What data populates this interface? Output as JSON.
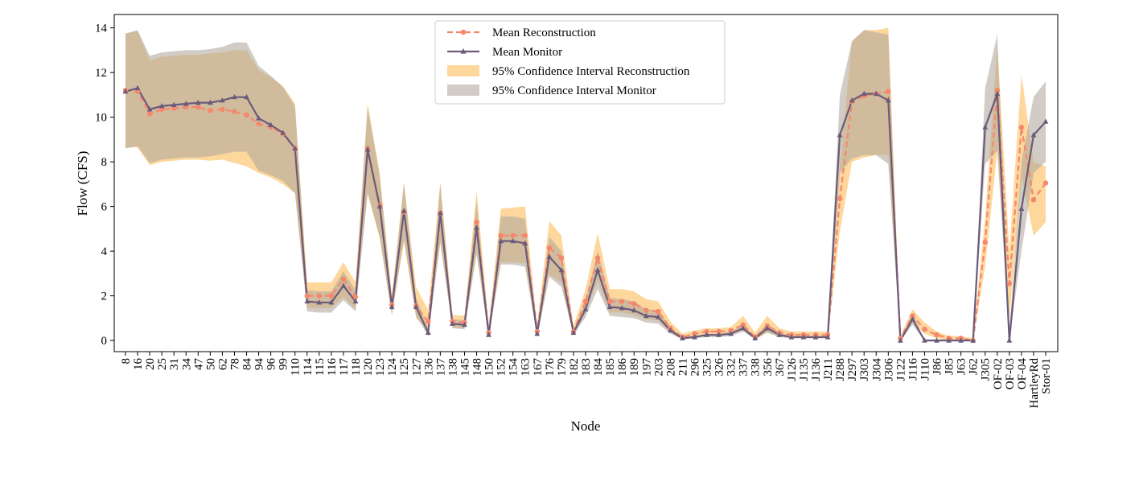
{
  "chart_data": {
    "type": "line",
    "xlabel": "Node",
    "ylabel": "Flow (CFS)",
    "ylim": [
      -0.5,
      14.6
    ],
    "yticks": [
      0,
      2,
      4,
      6,
      8,
      10,
      12,
      14
    ],
    "grid": false,
    "legend_position": "top-center",
    "categories": [
      "8",
      "16",
      "20",
      "25",
      "31",
      "34",
      "47",
      "50",
      "62",
      "78",
      "84",
      "94",
      "96",
      "99",
      "110",
      "114",
      "115",
      "116",
      "117",
      "118",
      "120",
      "123",
      "124",
      "125",
      "127",
      "136",
      "137",
      "138",
      "145",
      "148",
      "150",
      "152",
      "154",
      "163",
      "167",
      "176",
      "179",
      "182",
      "183",
      "184",
      "185",
      "186",
      "189",
      "197",
      "203",
      "208",
      "211",
      "296",
      "325",
      "326",
      "332",
      "337",
      "338",
      "356",
      "367",
      "J126",
      "J135",
      "J136",
      "J211",
      "J288",
      "J297",
      "J303",
      "J304",
      "J306",
      "J122",
      "J116",
      "J110",
      "J86",
      "J85",
      "J63",
      "J62",
      "J305",
      "OF-02",
      "OF-03",
      "OF-04",
      "HartleyRd",
      "Stor-01"
    ],
    "series": [
      {
        "name": "Mean Reconstruction",
        "color": "#f4876d",
        "style": "dashed-circle",
        "values": [
          11.2,
          11.15,
          10.15,
          10.35,
          10.4,
          10.45,
          10.45,
          10.3,
          10.35,
          10.25,
          10.1,
          9.7,
          9.55,
          9.25,
          8.6,
          2.0,
          2.0,
          2.0,
          2.75,
          1.95,
          8.6,
          6.05,
          1.6,
          5.75,
          1.55,
          0.85,
          5.7,
          0.85,
          0.8,
          5.3,
          0.35,
          4.7,
          4.7,
          4.7,
          0.4,
          4.15,
          3.7,
          0.4,
          1.75,
          3.7,
          1.75,
          1.75,
          1.65,
          1.35,
          1.3,
          0.55,
          0.15,
          0.3,
          0.4,
          0.4,
          0.45,
          0.7,
          0.15,
          0.65,
          0.35,
          0.25,
          0.25,
          0.25,
          0.25,
          6.35,
          10.7,
          10.95,
          11.05,
          11.15,
          0.1,
          1.1,
          0.5,
          0.25,
          0.1,
          0.1,
          0.0,
          4.4,
          11.2,
          2.55,
          9.55,
          6.3,
          7.05
        ]
      },
      {
        "name": "Mean Monitor",
        "color": "#6b5b7b",
        "style": "solid-triangle",
        "values": [
          11.15,
          11.3,
          10.35,
          10.5,
          10.55,
          10.6,
          10.65,
          10.65,
          10.75,
          10.9,
          10.9,
          9.95,
          9.65,
          9.3,
          8.6,
          1.75,
          1.7,
          1.7,
          2.45,
          1.75,
          8.55,
          6.0,
          1.5,
          5.8,
          1.5,
          0.35,
          5.7,
          0.75,
          0.7,
          5.05,
          0.25,
          4.45,
          4.45,
          4.35,
          0.3,
          3.75,
          3.15,
          0.35,
          1.4,
          3.15,
          1.5,
          1.45,
          1.35,
          1.1,
          1.05,
          0.45,
          0.1,
          0.15,
          0.25,
          0.25,
          0.3,
          0.55,
          0.1,
          0.55,
          0.25,
          0.15,
          0.15,
          0.15,
          0.15,
          9.2,
          10.75,
          11.05,
          11.05,
          10.75,
          0.0,
          0.95,
          0.0,
          0.0,
          0.0,
          0.0,
          0.0,
          9.55,
          11.05,
          0.0,
          5.9,
          9.2,
          9.8
        ]
      }
    ],
    "bands": [
      {
        "name": "95% Confidence Interval Reconstruction",
        "color": "#fdd089",
        "upper": [
          13.75,
          13.85,
          12.55,
          12.7,
          12.75,
          12.8,
          12.8,
          12.85,
          12.9,
          13.0,
          13.0,
          12.1,
          11.8,
          11.4,
          10.6,
          2.6,
          2.6,
          2.6,
          3.5,
          2.6,
          10.6,
          7.5,
          2.0,
          7.1,
          2.4,
          1.35,
          7.1,
          1.15,
          1.1,
          6.7,
          0.7,
          5.9,
          5.95,
          6.0,
          0.7,
          5.35,
          4.7,
          0.65,
          2.3,
          4.8,
          2.3,
          2.3,
          2.2,
          1.85,
          1.75,
          0.85,
          0.3,
          0.45,
          0.55,
          0.55,
          0.6,
          1.1,
          0.35,
          1.1,
          0.55,
          0.4,
          0.4,
          0.4,
          0.4,
          7.8,
          13.4,
          13.9,
          13.9,
          14.0,
          0.2,
          1.4,
          0.8,
          0.4,
          0.2,
          0.2,
          0.1,
          5.5,
          13.3,
          4.0,
          11.9,
          8.0,
          7.8
        ],
        "lower": [
          8.65,
          8.65,
          7.85,
          8.0,
          8.05,
          8.1,
          8.1,
          8.05,
          8.1,
          7.95,
          7.8,
          7.5,
          7.3,
          7.0,
          6.6,
          1.45,
          1.45,
          1.45,
          1.95,
          1.4,
          6.6,
          4.6,
          1.2,
          4.4,
          1.0,
          0.45,
          4.35,
          0.6,
          0.55,
          4.0,
          0.15,
          3.5,
          3.5,
          3.45,
          0.15,
          2.95,
          2.6,
          0.2,
          1.25,
          2.7,
          1.25,
          1.25,
          1.15,
          0.95,
          0.9,
          0.35,
          0.05,
          0.15,
          0.25,
          0.25,
          0.3,
          0.45,
          0.05,
          0.35,
          0.2,
          0.1,
          0.1,
          0.1,
          0.1,
          4.9,
          8.0,
          8.2,
          8.3,
          8.3,
          0.0,
          0.8,
          0.3,
          0.1,
          0.0,
          0.0,
          0.0,
          3.3,
          8.5,
          1.0,
          7.3,
          4.7,
          5.3
        ]
      },
      {
        "name": "95% Confidence Interval Monitor",
        "color": "#b2aa9e",
        "upper": [
          13.75,
          13.9,
          12.75,
          12.9,
          12.95,
          13.0,
          13.0,
          13.05,
          13.15,
          13.35,
          13.35,
          12.3,
          11.85,
          11.35,
          10.5,
          2.25,
          2.2,
          2.2,
          3.1,
          2.25,
          10.45,
          7.35,
          1.9,
          7.05,
          1.9,
          0.55,
          7.0,
          0.95,
          0.9,
          6.25,
          0.35,
          5.55,
          5.55,
          5.45,
          0.4,
          4.65,
          4.0,
          0.45,
          1.75,
          4.0,
          1.9,
          1.85,
          1.75,
          1.4,
          1.35,
          0.6,
          0.15,
          0.2,
          0.3,
          0.3,
          0.4,
          0.7,
          0.15,
          0.75,
          0.35,
          0.2,
          0.2,
          0.2,
          0.2,
          11.0,
          13.4,
          13.9,
          13.8,
          13.7,
          0.0,
          1.2,
          0.0,
          0.0,
          0.0,
          0.0,
          0.0,
          11.3,
          13.7,
          0.3,
          8.0,
          10.9,
          11.6
        ],
        "lower": [
          8.6,
          8.7,
          7.95,
          8.1,
          8.15,
          8.2,
          8.2,
          8.25,
          8.35,
          8.45,
          8.45,
          7.6,
          7.4,
          7.15,
          6.6,
          1.3,
          1.25,
          1.25,
          1.8,
          1.3,
          6.6,
          4.6,
          1.1,
          4.55,
          1.1,
          0.2,
          4.4,
          0.55,
          0.5,
          3.85,
          0.15,
          3.4,
          3.4,
          3.3,
          0.15,
          2.85,
          2.4,
          0.25,
          1.05,
          2.3,
          1.1,
          1.05,
          1.0,
          0.8,
          0.75,
          0.3,
          0.05,
          0.1,
          0.15,
          0.15,
          0.2,
          0.4,
          0.05,
          0.35,
          0.15,
          0.1,
          0.1,
          0.1,
          0.1,
          7.5,
          8.15,
          8.3,
          8.3,
          7.9,
          0.0,
          0.7,
          0.0,
          0.0,
          0.0,
          0.0,
          0.0,
          7.9,
          8.5,
          0.0,
          4.0,
          7.5,
          8.0
        ]
      }
    ]
  }
}
